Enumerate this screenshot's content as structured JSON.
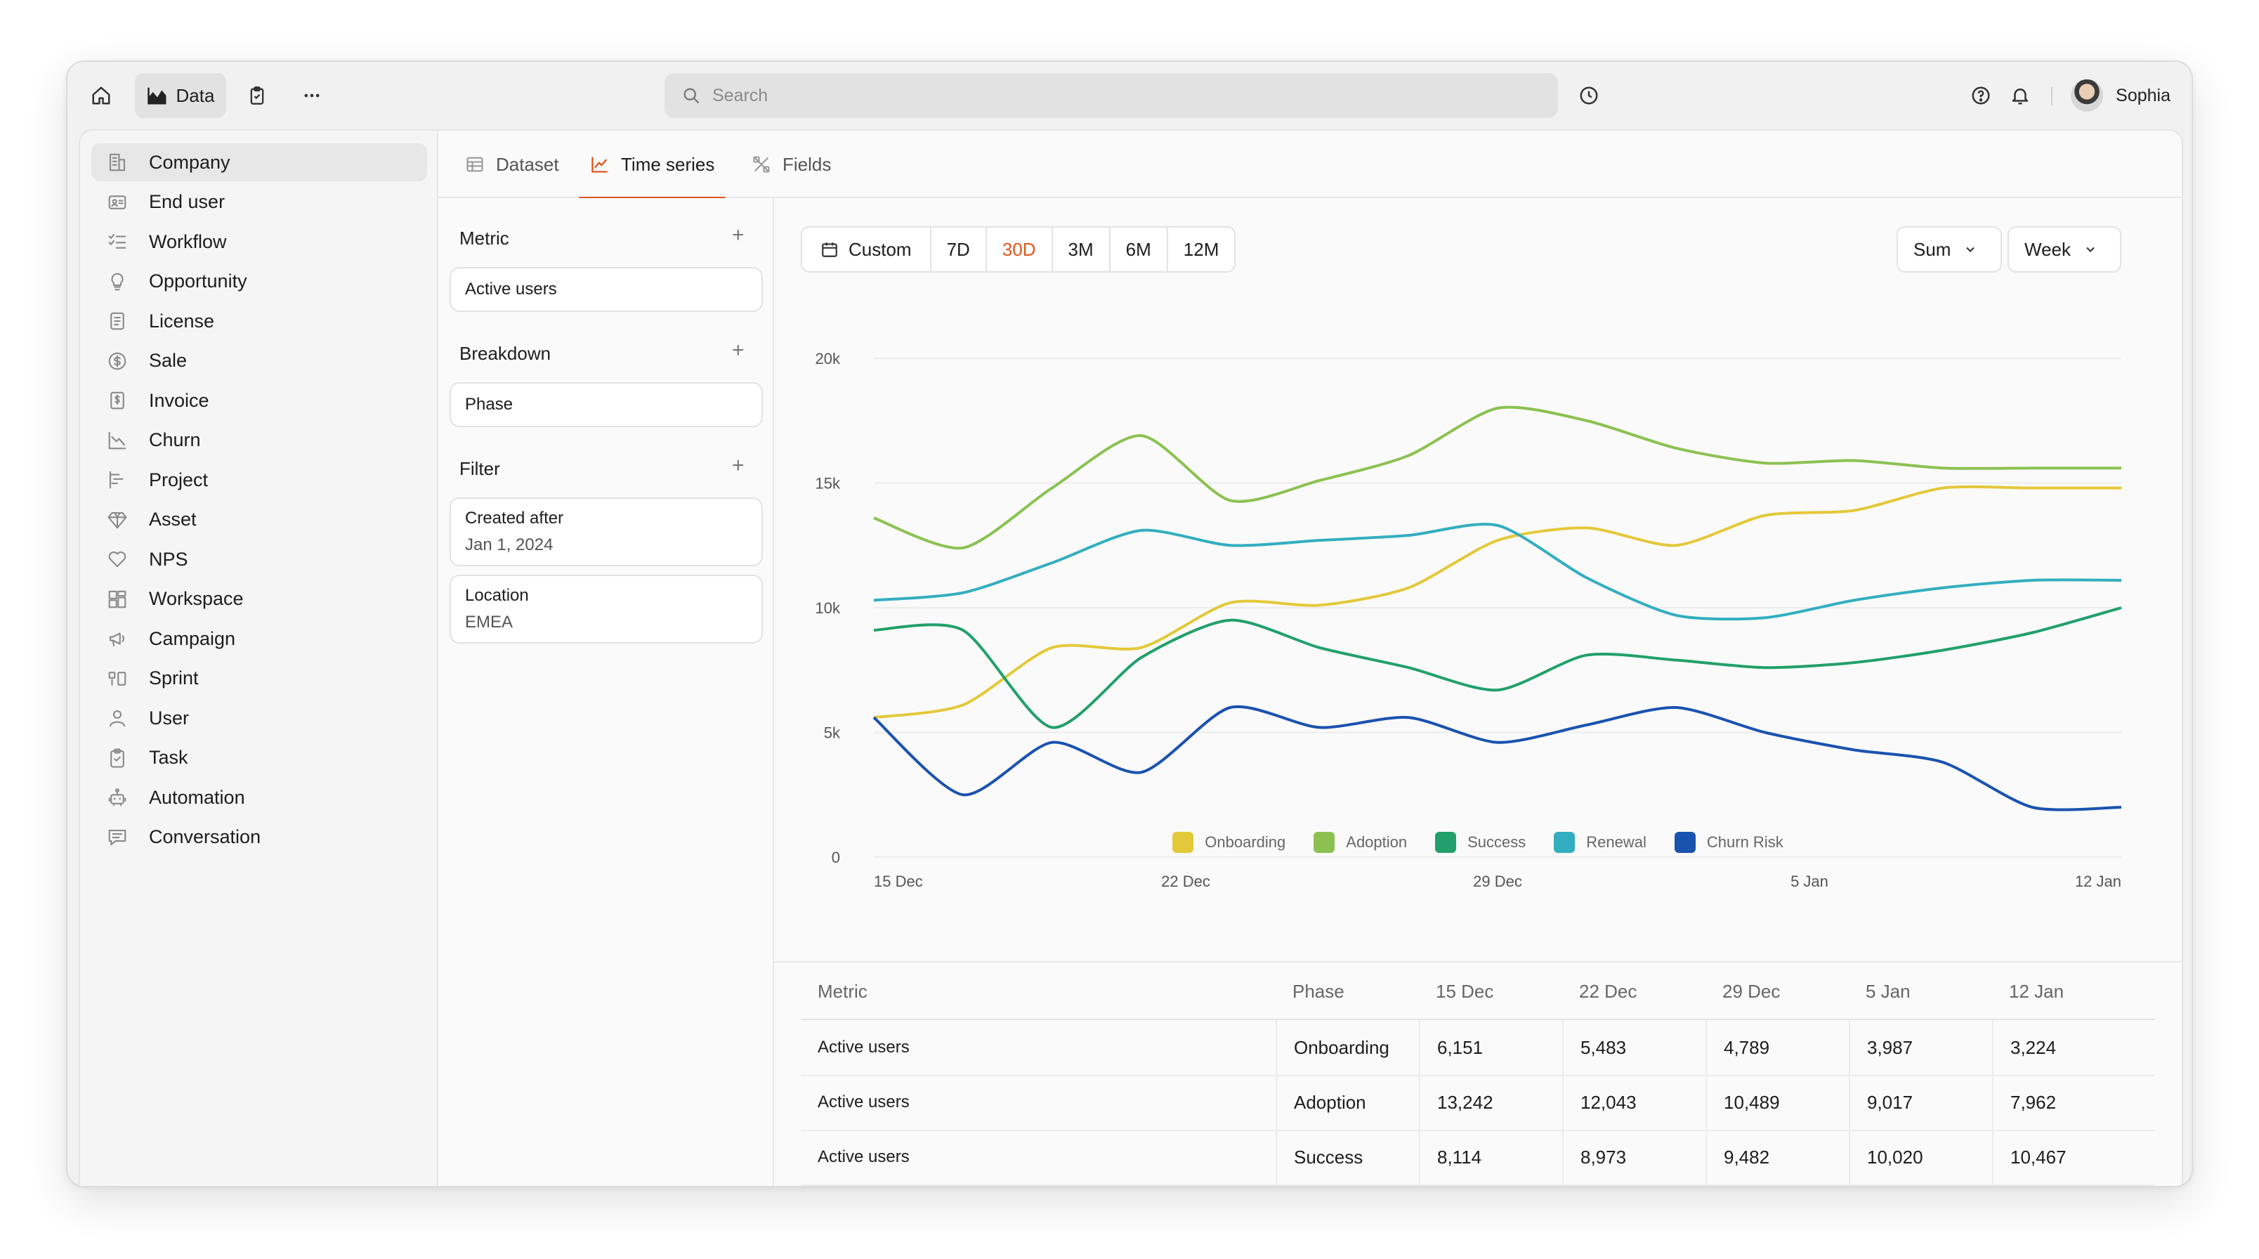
{
  "topbar": {
    "data_label": "Data",
    "search_placeholder": "Search",
    "user_name": "Sophia"
  },
  "sidebar": {
    "items": [
      {
        "label": "Company",
        "icon": "building-icon"
      },
      {
        "label": "End user",
        "icon": "id-card-icon"
      },
      {
        "label": "Workflow",
        "icon": "checklist-icon"
      },
      {
        "label": "Opportunity",
        "icon": "lightbulb-icon"
      },
      {
        "label": "License",
        "icon": "document-icon"
      },
      {
        "label": "Sale",
        "icon": "dollar-circle-icon"
      },
      {
        "label": "Invoice",
        "icon": "invoice-icon"
      },
      {
        "label": "Churn",
        "icon": "trend-down-icon"
      },
      {
        "label": "Project",
        "icon": "gantt-icon"
      },
      {
        "label": "Asset",
        "icon": "diamond-icon"
      },
      {
        "label": "NPS",
        "icon": "heart-icon"
      },
      {
        "label": "Workspace",
        "icon": "layout-icon"
      },
      {
        "label": "Campaign",
        "icon": "megaphone-icon"
      },
      {
        "label": "Sprint",
        "icon": "sprint-icon"
      },
      {
        "label": "User",
        "icon": "user-icon"
      },
      {
        "label": "Task",
        "icon": "clipboard-icon"
      },
      {
        "label": "Automation",
        "icon": "robot-icon"
      },
      {
        "label": "Conversation",
        "icon": "chat-icon"
      }
    ]
  },
  "tabs": {
    "dataset": "Dataset",
    "time_series": "Time series",
    "fields": "Fields"
  },
  "config": {
    "metric_title": "Metric",
    "metric_value": "Active users",
    "breakdown_title": "Breakdown",
    "breakdown_value": "Phase",
    "filter_title": "Filter",
    "filters": [
      {
        "key": "Created after",
        "value": "Jan 1, 2024"
      },
      {
        "key": "Location",
        "value": "EMEA"
      }
    ]
  },
  "controls": {
    "ranges": [
      "Custom",
      "7D",
      "30D",
      "3M",
      "6M",
      "12M"
    ],
    "selected_range": "30D",
    "aggregate": "Sum",
    "interval": "Week"
  },
  "colors": {
    "accent": "#e0561b",
    "onboarding": "#e3c93a",
    "adoption": "#8cc152",
    "success": "#22a06b",
    "renewal": "#33aec0",
    "churn_risk": "#1a52b0"
  },
  "chart_data": {
    "type": "line",
    "title": "",
    "xlabel": "",
    "ylabel": "",
    "ylim": [
      0,
      20000
    ],
    "yticks": [
      0,
      5000,
      10000,
      15000,
      20000
    ],
    "ytick_labels": [
      "0",
      "5k",
      "10k",
      "15k",
      "20k"
    ],
    "x_tick_labels": [
      "15 Dec",
      "22 Dec",
      "29 Dec",
      "5 Jan",
      "12 Jan"
    ],
    "x_tick_positions": [
      0,
      3.5,
      7,
      10.5,
      14
    ],
    "x": [
      0,
      1,
      2,
      3,
      4,
      5,
      6,
      7,
      8,
      9,
      10,
      11,
      12,
      13,
      14
    ],
    "legend_position": "bottom",
    "series": [
      {
        "name": "Onboarding",
        "color": "#e3c93a",
        "values": [
          5600,
          6100,
          8400,
          8400,
          10200,
          10100,
          10800,
          12700,
          13200,
          12500,
          13700,
          13900,
          14800,
          14800,
          14800
        ]
      },
      {
        "name": "Adoption",
        "color": "#8cc152",
        "values": [
          13600,
          12400,
          14800,
          16900,
          14300,
          15100,
          16100,
          18000,
          17500,
          16400,
          15800,
          15900,
          15600,
          15600,
          15600
        ]
      },
      {
        "name": "Success",
        "color": "#22a06b",
        "values": [
          9100,
          9100,
          5200,
          8000,
          9500,
          8400,
          7600,
          6700,
          8100,
          7900,
          7600,
          7800,
          8300,
          9000,
          10000
        ]
      },
      {
        "name": "Renewal",
        "color": "#33aec0",
        "values": [
          10300,
          10600,
          11800,
          13100,
          12500,
          12700,
          12900,
          13300,
          11200,
          9700,
          9600,
          10300,
          10800,
          11100,
          11100
        ]
      },
      {
        "name": "Churn Risk",
        "color": "#1a52b0",
        "values": [
          5600,
          2500,
          4600,
          3400,
          6000,
          5200,
          5600,
          4600,
          5300,
          6000,
          5000,
          4300,
          3800,
          2000,
          2000
        ]
      }
    ]
  },
  "table": {
    "headers": [
      "Metric",
      "Phase",
      "15 Dec",
      "22 Dec",
      "29 Dec",
      "5 Jan",
      "12 Jan"
    ],
    "rows": [
      [
        "Active users",
        "Onboarding",
        "6,151",
        "5,483",
        "4,789",
        "3,987",
        "3,224"
      ],
      [
        "Active users",
        "Adoption",
        "13,242",
        "12,043",
        "10,489",
        "9,017",
        "7,962"
      ],
      [
        "Active users",
        "Success",
        "8,114",
        "8,973",
        "9,482",
        "10,020",
        "10,467"
      ]
    ]
  }
}
